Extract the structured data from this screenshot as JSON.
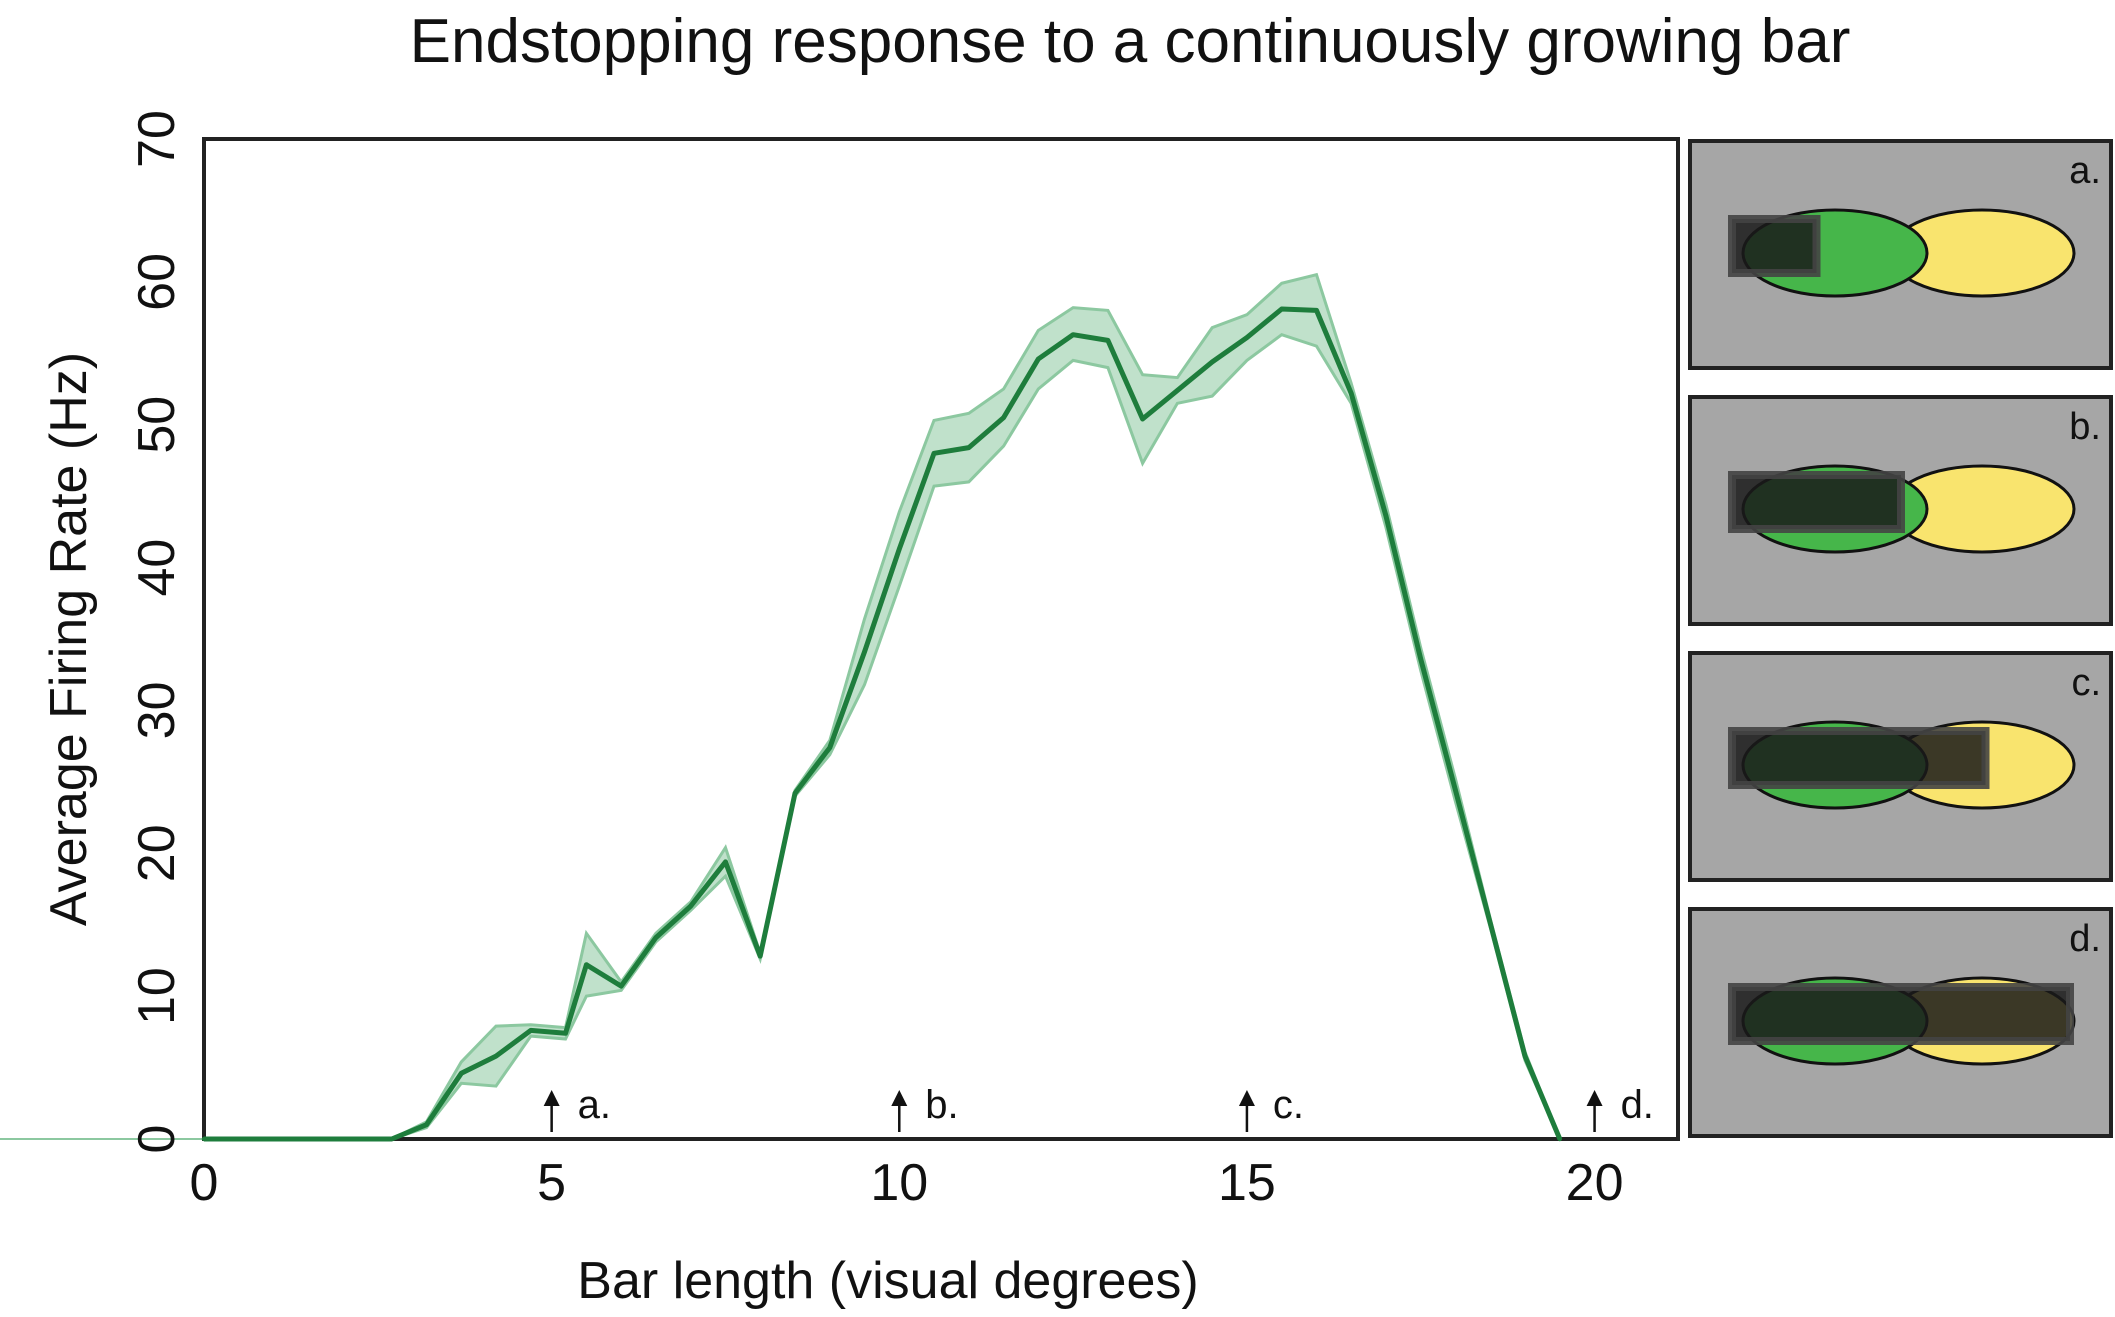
{
  "chart_data": {
    "type": "line",
    "title": "Endstopping response to a continuously growing bar",
    "xlabel": "Bar length (visual degrees)",
    "ylabel": "Average Firing Rate (Hz)",
    "xlim": [
      0,
      21.2
    ],
    "ylim": [
      0,
      70
    ],
    "xticks": [
      0,
      5,
      10,
      15,
      20
    ],
    "yticks": [
      0,
      10,
      20,
      30,
      40,
      50,
      60,
      70
    ],
    "grid": false,
    "legend": "none",
    "series": [
      {
        "color": "#1e7d3c",
        "band_color": "#8cc8a0",
        "x": [
          0,
          2.7,
          3.2,
          3.7,
          4.2,
          4.7,
          5.2,
          5.5,
          6.0,
          6.5,
          7.0,
          7.5,
          8.0,
          8.5,
          9.0,
          9.5,
          10.0,
          10.5,
          11.0,
          11.5,
          12.0,
          12.5,
          13.0,
          13.5,
          14.0,
          14.5,
          15.0,
          15.5,
          16.0,
          16.5,
          17.0,
          17.5,
          18.0,
          18.5,
          19.0,
          19.5
        ],
        "y": [
          0,
          0,
          1.0,
          4.6,
          5.8,
          7.6,
          7.4,
          12.2,
          10.7,
          14.1,
          16.3,
          19.4,
          12.8,
          24.2,
          27.4,
          34.1,
          41.3,
          48.0,
          48.4,
          50.5,
          54.6,
          56.3,
          55.9,
          50.4,
          52.4,
          54.4,
          56.1,
          58.1,
          58.0,
          52.2,
          43.6,
          33.6,
          24.4,
          15.1,
          5.8,
          0
        ],
        "lower": [
          0,
          0,
          0.8,
          3.9,
          3.7,
          7.2,
          7.0,
          10.0,
          10.4,
          13.8,
          16.0,
          18.4,
          12.6,
          24.0,
          26.9,
          31.8,
          38.7,
          45.7,
          46.0,
          48.5,
          52.5,
          54.5,
          54.0,
          47.3,
          51.5,
          52.0,
          54.5,
          56.3,
          55.5,
          51.5,
          42.8,
          32.8,
          23.6,
          14.8,
          5.5,
          0
        ],
        "upper": [
          0,
          0,
          1.2,
          5.4,
          7.9,
          8.0,
          7.8,
          14.4,
          11.0,
          14.4,
          16.6,
          20.4,
          13.0,
          24.4,
          27.9,
          36.4,
          43.9,
          50.3,
          50.8,
          52.5,
          56.6,
          58.2,
          58.0,
          53.5,
          53.3,
          56.8,
          57.7,
          59.9,
          60.5,
          52.9,
          44.4,
          34.4,
          25.2,
          15.4,
          6.1,
          0
        ]
      }
    ],
    "markers": [
      {
        "x": 5.0,
        "label": "a."
      },
      {
        "x": 10.0,
        "label": "b."
      },
      {
        "x": 15.0,
        "label": "c."
      },
      {
        "x": 20.0,
        "label": "d."
      }
    ],
    "panels": [
      {
        "label": "a.",
        "bar_start": 0.0,
        "bar_end": 5.0
      },
      {
        "label": "b.",
        "bar_start": 0.0,
        "bar_end": 10.0
      },
      {
        "label": "c.",
        "bar_start": 0.0,
        "bar_end": 15.0
      },
      {
        "label": "d.",
        "bar_start": 0.0,
        "bar_end": 20.0
      }
    ],
    "colors": {
      "panel_background": "#a6a6a6",
      "center_field": "#46b64a",
      "surround_field": "#f9e46e",
      "bar": "#1a1a1a"
    }
  }
}
